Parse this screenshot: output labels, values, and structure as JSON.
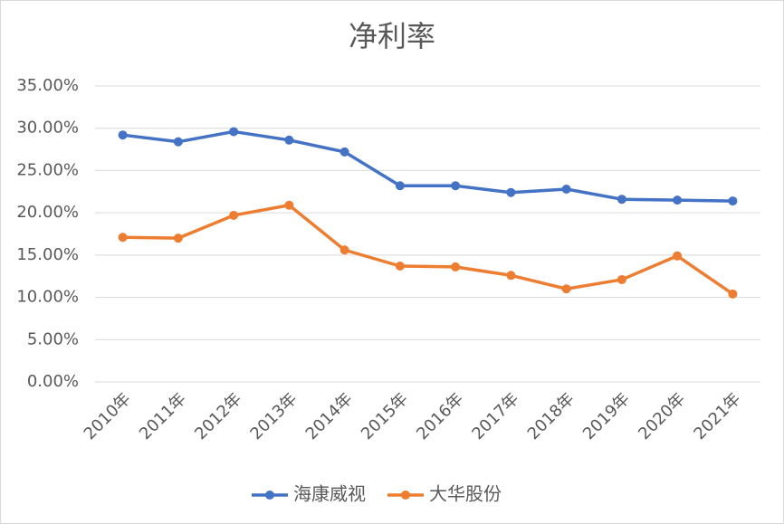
{
  "chart_data": {
    "type": "line",
    "title": "净利率",
    "categories": [
      "2010年",
      "2011年",
      "2012年",
      "2013年",
      "2014年",
      "2015年",
      "2016年",
      "2017年",
      "2018年",
      "2019年",
      "2020年",
      "2021年"
    ],
    "series": [
      {
        "name": "海康威视",
        "color": "#4472c4",
        "values": [
          29.2,
          28.4,
          29.6,
          28.6,
          27.2,
          23.2,
          23.2,
          22.4,
          22.8,
          21.6,
          21.5,
          21.4
        ]
      },
      {
        "name": "大华股份",
        "color": "#ed7d31",
        "values": [
          17.1,
          17.0,
          19.7,
          20.9,
          15.6,
          13.7,
          13.6,
          12.6,
          11.0,
          12.1,
          14.9,
          10.4
        ]
      }
    ],
    "ylim": [
      0,
      35
    ],
    "yticks": [
      {
        "value": 0,
        "label": "0.00%"
      },
      {
        "value": 5,
        "label": "5.00%"
      },
      {
        "value": 10,
        "label": "10.00%"
      },
      {
        "value": 15,
        "label": "15.00%"
      },
      {
        "value": 20,
        "label": "20.00%"
      },
      {
        "value": 25,
        "label": "25.00%"
      },
      {
        "value": 30,
        "label": "30.00%"
      },
      {
        "value": 35,
        "label": "35.00%"
      }
    ],
    "grid": true,
    "legend": "bottom"
  }
}
